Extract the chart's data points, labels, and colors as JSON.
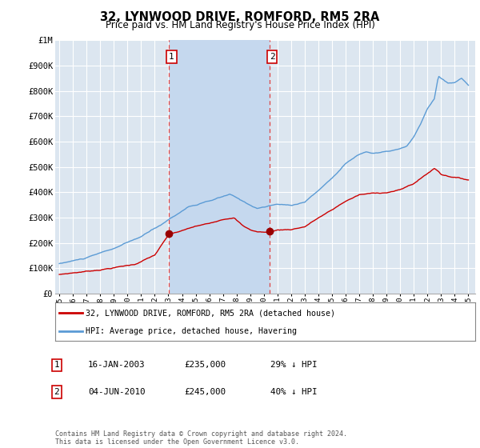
{
  "title": "32, LYNWOOD DRIVE, ROMFORD, RM5 2RA",
  "subtitle": "Price paid vs. HM Land Registry's House Price Index (HPI)",
  "background_color": "#ffffff",
  "plot_bg_color": "#dce6f0",
  "shade_color": "#c5d8ee",
  "grid_color": "#ffffff",
  "ylim": [
    0,
    1000000
  ],
  "yticks": [
    0,
    100000,
    200000,
    300000,
    400000,
    500000,
    600000,
    700000,
    800000,
    900000,
    1000000
  ],
  "ytick_labels": [
    "£0",
    "£100K",
    "£200K",
    "£300K",
    "£400K",
    "£500K",
    "£600K",
    "£700K",
    "£800K",
    "£900K",
    "£1M"
  ],
  "sale_prices": [
    235000,
    245000
  ],
  "sale_labels": [
    "1",
    "2"
  ],
  "sale_year_vals": [
    2003.04,
    2010.42
  ],
  "sale_info": [
    {
      "label": "1",
      "date": "16-JAN-2003",
      "price": "£235,000",
      "pct": "29%",
      "dir": "↓",
      "ref": "HPI"
    },
    {
      "label": "2",
      "date": "04-JUN-2010",
      "price": "£245,000",
      "pct": "40%",
      "dir": "↓",
      "ref": "HPI"
    }
  ],
  "hpi_color": "#5b9bd5",
  "sale_color": "#cc0000",
  "sale_point_color": "#990000",
  "annotation_box_color": "#cc0000",
  "legend_label_sale": "32, LYNWOOD DRIVE, ROMFORD, RM5 2RA (detached house)",
  "legend_label_hpi": "HPI: Average price, detached house, Havering",
  "footer": "Contains HM Land Registry data © Crown copyright and database right 2024.\nThis data is licensed under the Open Government Licence v3.0.",
  "vline_color": "#dd4444",
  "xlim_start": 1994.7,
  "xlim_end": 2025.5
}
